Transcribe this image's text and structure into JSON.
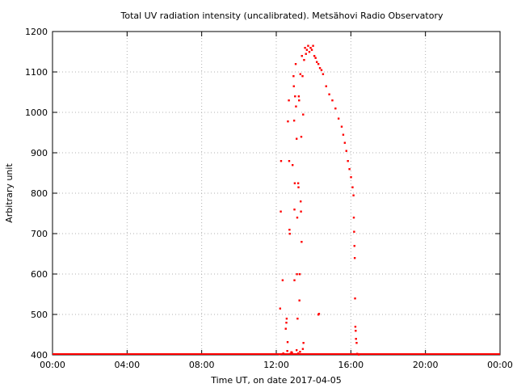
{
  "chart_data": {
    "type": "scatter",
    "title": "Total UV radiation intensity (uncalibrated). Metsähovi Radio Observatory",
    "xlabel": "Time UT, on date 2017-04-05",
    "ylabel": "Arbitrary unit",
    "xlim": [
      "00:00",
      "24:00"
    ],
    "ylim": [
      400,
      1200
    ],
    "x_ticks": [
      "00:00",
      "04:00",
      "08:00",
      "12:00",
      "16:00",
      "20:00",
      "00:00"
    ],
    "y_ticks": [
      "400",
      "500",
      "600",
      "700",
      "800",
      "900",
      "1000",
      "1100",
      "1200"
    ],
    "grid": true,
    "marker_color": "#ff0000",
    "baseline": {
      "y": 402,
      "x_range": [
        "00:00",
        "24:00"
      ]
    },
    "series": [
      {
        "points": [
          [
            "12:12",
            515
          ],
          [
            "12:15",
            880
          ],
          [
            "12:14",
            755
          ],
          [
            "12:20",
            585
          ],
          [
            "12:30",
            465
          ],
          [
            "12:32",
            480
          ],
          [
            "12:33",
            490
          ],
          [
            "12:36",
            432
          ],
          [
            "12:37",
            978
          ],
          [
            "12:40",
            1030
          ],
          [
            "12:41",
            880
          ],
          [
            "12:42",
            710
          ],
          [
            "12:43",
            700
          ],
          [
            "12:48",
            407
          ],
          [
            "12:52",
            870
          ],
          [
            "12:55",
            1090
          ],
          [
            "12:56",
            1065
          ],
          [
            "12:57",
            980
          ],
          [
            "12:58",
            760
          ],
          [
            "12:59",
            825
          ],
          [
            "12:58",
            585
          ],
          [
            "13:00",
            1040
          ],
          [
            "13:02",
            1120
          ],
          [
            "13:03",
            1015
          ],
          [
            "13:05",
            935
          ],
          [
            "13:06",
            600
          ],
          [
            "13:07",
            740
          ],
          [
            "13:08",
            490
          ],
          [
            "13:10",
            825
          ],
          [
            "13:11",
            815
          ],
          [
            "13:12",
            1040
          ],
          [
            "13:13",
            1030
          ],
          [
            "13:14",
            535
          ],
          [
            "13:15",
            600
          ],
          [
            "13:17",
            1095
          ],
          [
            "13:18",
            780
          ],
          [
            "13:19",
            755
          ],
          [
            "13:20",
            940
          ],
          [
            "13:21",
            680
          ],
          [
            "13:22",
            1140
          ],
          [
            "13:24",
            1090
          ],
          [
            "13:26",
            995
          ],
          [
            "13:29",
            1130
          ],
          [
            "13:32",
            1160
          ],
          [
            "13:35",
            1145
          ],
          [
            "13:38",
            1155
          ],
          [
            "13:42",
            1165
          ],
          [
            "13:46",
            1150
          ],
          [
            "13:50",
            1160
          ],
          [
            "13:54",
            1155
          ],
          [
            "13:58",
            1165
          ],
          [
            "14:02",
            1140
          ],
          [
            "14:06",
            1135
          ],
          [
            "14:10",
            1125
          ],
          [
            "14:15",
            1120
          ],
          [
            "14:20",
            1110
          ],
          [
            "14:25",
            1105
          ],
          [
            "14:30",
            1095
          ],
          [
            "14:40",
            1065
          ],
          [
            "14:50",
            1045
          ],
          [
            "15:00",
            1030
          ],
          [
            "15:10",
            1010
          ],
          [
            "15:20",
            985
          ],
          [
            "15:30",
            965
          ],
          [
            "15:35",
            945
          ],
          [
            "15:40",
            925
          ],
          [
            "15:45",
            905
          ],
          [
            "15:50",
            880
          ],
          [
            "15:55",
            860
          ],
          [
            "16:00",
            840
          ],
          [
            "16:05",
            815
          ],
          [
            "16:08",
            795
          ],
          [
            "16:09",
            740
          ],
          [
            "16:10",
            705
          ],
          [
            "16:11",
            670
          ],
          [
            "16:12",
            640
          ],
          [
            "16:13",
            540
          ],
          [
            "16:14",
            470
          ],
          [
            "16:15",
            460
          ],
          [
            "16:16",
            440
          ],
          [
            "16:18",
            430
          ],
          [
            "14:15",
            500
          ],
          [
            "14:17",
            502
          ],
          [
            "12:10",
            402
          ],
          [
            "12:22",
            404
          ],
          [
            "12:35",
            410
          ],
          [
            "12:45",
            403
          ],
          [
            "12:50",
            406
          ],
          [
            "13:05",
            412
          ],
          [
            "13:10",
            404
          ],
          [
            "13:16",
            408
          ],
          [
            "13:25",
            415
          ],
          [
            "13:27",
            430
          ],
          [
            "16:20",
            403
          ],
          [
            "16:25",
            401
          ]
        ]
      }
    ]
  }
}
